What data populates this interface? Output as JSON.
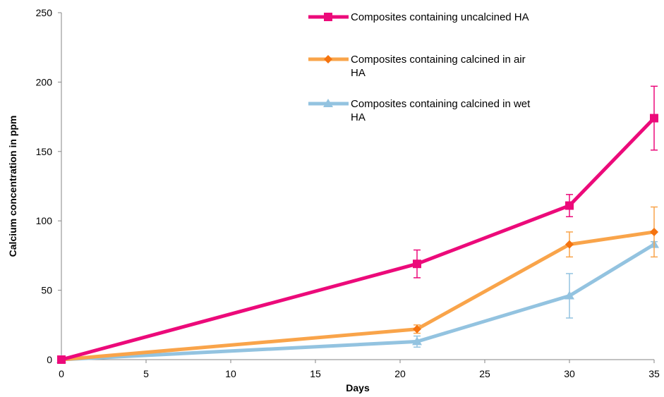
{
  "chart_data": {
    "type": "line",
    "xlabel": "Days",
    "ylabel": "Calcium concentration in ppm",
    "xlim": [
      0,
      35
    ],
    "ylim": [
      0,
      250
    ],
    "xticks": [
      "0",
      "5",
      "10",
      "15",
      "20",
      "25",
      "30",
      "35"
    ],
    "yticks": [
      "0",
      "50",
      "100",
      "150",
      "200",
      "250"
    ],
    "grid": false,
    "legend_position": "top-right",
    "x": [
      0,
      21,
      30,
      35
    ],
    "series": [
      {
        "name": "Composites containing uncalcined HA",
        "legend_lines": [
          "Composites containing uncalcined HA"
        ],
        "color": "#EC0A7A",
        "marker": "square",
        "values": [
          0,
          69,
          111,
          174
        ],
        "errors": [
          0,
          10,
          8,
          23
        ]
      },
      {
        "name": "Composites containing calcined in air HA",
        "legend_lines": [
          "Composites containing calcined in air",
          "HA"
        ],
        "color": "#F9A44A",
        "marker_color": "#F5730F",
        "marker": "diamond",
        "values": [
          0,
          22,
          83,
          92
        ],
        "errors": [
          0,
          3,
          9,
          18
        ]
      },
      {
        "name": "Composites containing calcined in wet HA",
        "legend_lines": [
          "Composites containing calcined in wet",
          "HA"
        ],
        "color": "#93C3E0",
        "marker_color": "#93C3E0",
        "marker": "triangle",
        "values": [
          0,
          13,
          46,
          83
        ],
        "errors": [
          0,
          4,
          16,
          2
        ]
      }
    ]
  }
}
